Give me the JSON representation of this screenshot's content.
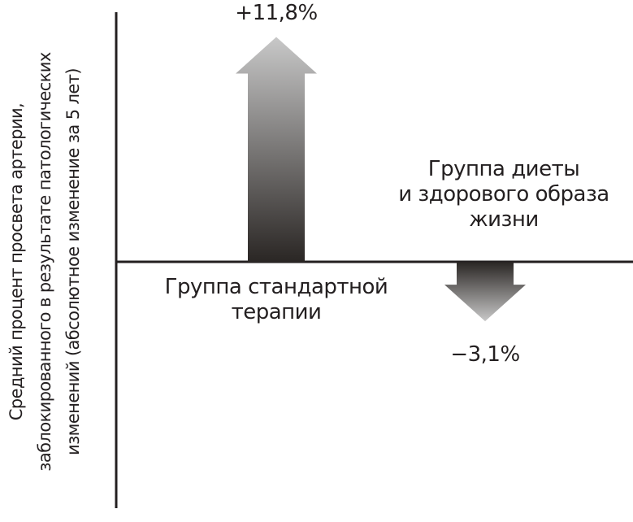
{
  "chart_data": {
    "type": "arrow-bar",
    "y_label": "Средний процент просвета артерии,\nзаблокированного в результате патологических\nизменений (абсолютное изменение за 5 лет)",
    "categories": [
      "Группа стандартной\nтерапии",
      "Группа диеты\nи здорового образа\nжизни"
    ],
    "values": [
      11.8,
      -3.1
    ],
    "value_labels": [
      "+11,8%",
      "−3,1%"
    ],
    "ylim": [
      -12.9,
      13.1
    ]
  }
}
